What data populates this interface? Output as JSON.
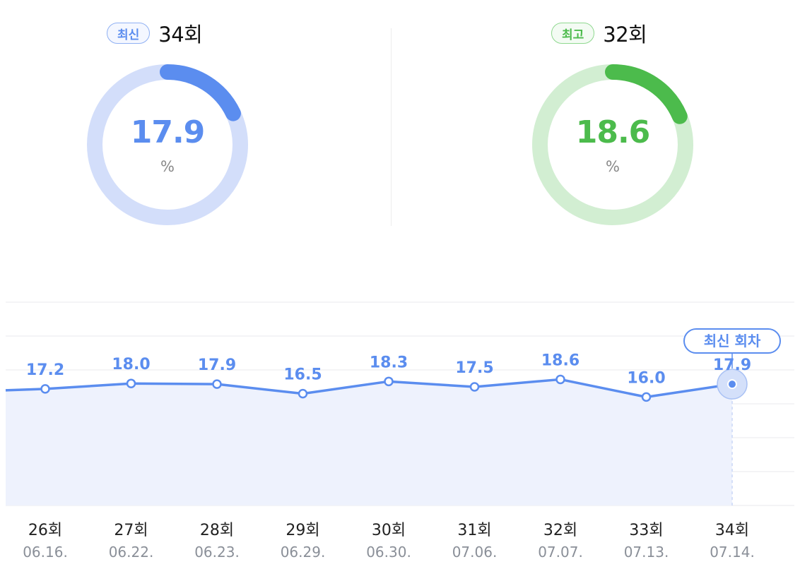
{
  "latest": {
    "badge": "최신",
    "round": "34회",
    "value": 17.9,
    "value_label": "17.9",
    "unit": "%",
    "color": "#5b8def",
    "track_color": "#d3defa"
  },
  "best": {
    "badge": "최고",
    "round": "32회",
    "value": 18.6,
    "value_label": "18.6",
    "unit": "%",
    "color": "#4cbb4c",
    "track_color": "#d2eed2"
  },
  "chart_data": {
    "type": "area",
    "categories": [
      "26회",
      "27회",
      "28회",
      "29회",
      "30회",
      "31회",
      "32회",
      "33회",
      "34회"
    ],
    "dates": [
      "06.16.",
      "06.22.",
      "06.23.",
      "06.29.",
      "06.30.",
      "07.06.",
      "07.07.",
      "07.13.",
      "07.14."
    ],
    "series": [
      {
        "values": [
          17.2,
          18.0,
          17.9,
          16.5,
          18.3,
          17.5,
          18.6,
          16.0,
          17.9
        ]
      }
    ],
    "ylim": [
      0,
      30
    ],
    "grid": true,
    "highlight_label": "최신 회차",
    "highlight_index": 8,
    "line_color": "#5b8def",
    "fill_color": "#eef2fd",
    "label_color": "#5b8def"
  }
}
